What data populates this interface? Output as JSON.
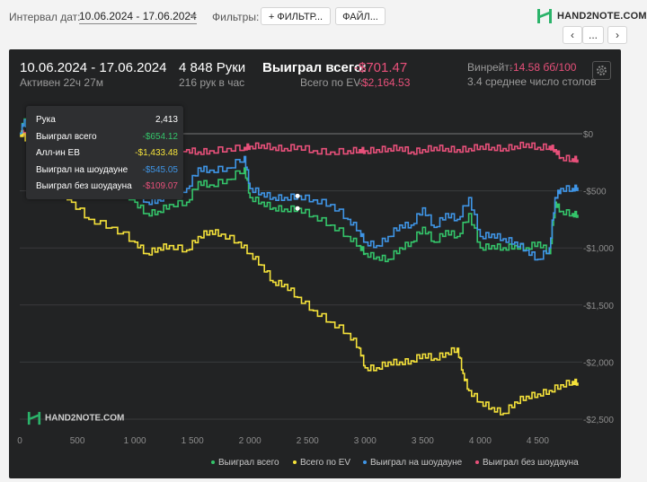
{
  "toolbar": {
    "interval_label": "Интервал дат:",
    "date_range": "10.06.2024 - 17.06.2024",
    "filters_label": "Фильтры:",
    "filter_button": "+ ФИЛЬТР...",
    "file_button": "ФАЙЛ...",
    "nav_prev": "‹",
    "nav_more": "...",
    "nav_next": "›"
  },
  "brand": {
    "logo_text": "HAND2NOTE.COM",
    "watermark": "HAND2NOTE.COM"
  },
  "summary": {
    "period": "10.06.2024 - 17.06.2024",
    "active": "Активен 22ч 27м",
    "hands": "4 848 Руки",
    "hands_per_hour": "216 рук в час",
    "won_total_label": "Выиграл всего:",
    "won_total_value": "-$701.47",
    "ev_label": "Всего по EV:",
    "ev_value": "-$2,164.53",
    "winrate_label": "Винрейт:",
    "winrate_value": "-14.58 бб/100",
    "tables": "3.4 среднее число столов"
  },
  "tooltip": {
    "rows": [
      {
        "label": "Рука",
        "value": "2,413",
        "color": "#ffffff"
      },
      {
        "label": "Выиграл всего",
        "value": "-$654.12",
        "color": "#34c46a"
      },
      {
        "label": "Алл-ин EB",
        "value": "-$1,433.48",
        "color": "#f5e23a"
      },
      {
        "label": "Выиграл на шоудауне",
        "value": "-$545.05",
        "color": "#3f95e6"
      },
      {
        "label": "Выиграл без шоудауна",
        "value": "-$109.07",
        "color": "#e8507a"
      }
    ]
  },
  "chart_data": {
    "type": "line",
    "xlabel": "",
    "ylabel": "",
    "xlim": [
      0,
      4848
    ],
    "ylim": [
      -2500,
      0
    ],
    "x_ticks": [
      0,
      500,
      1000,
      1500,
      2000,
      2500,
      3000,
      3500,
      4000,
      4500
    ],
    "x_tick_labels": [
      "0",
      "500",
      "1 000",
      "1 500",
      "2 000",
      "2 500",
      "3 000",
      "3 500",
      "4 000",
      "4 500"
    ],
    "y_ticks": [
      0,
      -500,
      -1000,
      -1500,
      -2000,
      -2500
    ],
    "y_tick_labels": [
      "$0",
      "-$500",
      "-$1,000",
      "-$1,500",
      "-$2,000",
      "-$2,500"
    ],
    "legend_position": "bottom-right",
    "grid": true,
    "series": [
      {
        "name": "Выиграл всего",
        "color": "#34c46a",
        "x": [
          0,
          40,
          100,
          200,
          300,
          450,
          600,
          800,
          1000,
          1100,
          1200,
          1300,
          1450,
          1550,
          1650,
          1800,
          1950,
          2000,
          2100,
          2200,
          2300,
          2413,
          2550,
          2700,
          2850,
          2950,
          3000,
          3100,
          3200,
          3300,
          3400,
          3500,
          3600,
          3700,
          3800,
          3900,
          4000,
          4100,
          4200,
          4300,
          4400,
          4500,
          4600,
          4650,
          4700,
          4800,
          4848
        ],
        "y": [
          0,
          130,
          -50,
          -120,
          -150,
          -200,
          -280,
          -420,
          -600,
          -700,
          -680,
          -620,
          -600,
          -420,
          -450,
          -400,
          -300,
          -560,
          -600,
          -650,
          -660,
          -654,
          -720,
          -800,
          -900,
          -980,
          -1050,
          -1080,
          -1100,
          -1000,
          -950,
          -820,
          -950,
          -850,
          -900,
          -700,
          -1000,
          -980,
          -1000,
          -980,
          -1000,
          -950,
          -1050,
          -600,
          -680,
          -700,
          -710
        ]
      },
      {
        "name": "Всего по EV",
        "color": "#f5e23a",
        "x": [
          0,
          30,
          100,
          200,
          300,
          450,
          600,
          800,
          1000,
          1100,
          1200,
          1300,
          1450,
          1550,
          1650,
          1750,
          1900,
          2000,
          2100,
          2200,
          2300,
          2413,
          2550,
          2700,
          2850,
          2950,
          3000,
          3100,
          3200,
          3300,
          3400,
          3500,
          3600,
          3700,
          3800,
          3850,
          3900,
          4000,
          4100,
          4200,
          4300,
          4400,
          4500,
          4600,
          4700,
          4800,
          4848
        ],
        "y": [
          0,
          0,
          -150,
          -300,
          -420,
          -600,
          -750,
          -820,
          -950,
          -1050,
          -1000,
          -980,
          -1020,
          -900,
          -850,
          -880,
          -950,
          -1050,
          -1150,
          -1300,
          -1320,
          -1433,
          -1550,
          -1650,
          -1750,
          -1880,
          -2050,
          -2050,
          -2000,
          -2000,
          -1990,
          -1930,
          -1970,
          -1920,
          -1880,
          -2100,
          -2250,
          -2350,
          -2400,
          -2450,
          -2350,
          -2300,
          -2280,
          -2250,
          -2200,
          -2170,
          -2180
        ]
      },
      {
        "name": "Выиграл на шоудауне",
        "color": "#3f95e6",
        "x": [
          0,
          40,
          100,
          200,
          300,
          450,
          600,
          800,
          1000,
          1100,
          1200,
          1300,
          1450,
          1550,
          1650,
          1800,
          1950,
          2000,
          2100,
          2200,
          2300,
          2413,
          2550,
          2700,
          2850,
          2950,
          3000,
          3100,
          3200,
          3300,
          3400,
          3500,
          3600,
          3700,
          3800,
          3900,
          4000,
          4100,
          4200,
          4300,
          4400,
          4500,
          4600,
          4650,
          4700,
          4800,
          4848
        ],
        "y": [
          0,
          120,
          -20,
          -90,
          -110,
          -120,
          -200,
          -360,
          -500,
          -600,
          -580,
          -520,
          -480,
          -300,
          -320,
          -300,
          -200,
          -480,
          -520,
          -560,
          -560,
          -545,
          -580,
          -620,
          -750,
          -850,
          -950,
          -980,
          -900,
          -800,
          -800,
          -650,
          -820,
          -700,
          -750,
          -560,
          -900,
          -880,
          -920,
          -950,
          -1020,
          -1100,
          -1000,
          -560,
          -480,
          -480,
          -470
        ]
      },
      {
        "name": "Выиграл без шоудауна",
        "color": "#e8507a",
        "x": [
          0,
          40,
          100,
          200,
          300,
          450,
          600,
          800,
          1000,
          1100,
          1200,
          1300,
          1450,
          1550,
          1650,
          1800,
          1950,
          2000,
          2100,
          2200,
          2300,
          2413,
          2550,
          2700,
          2850,
          2950,
          3000,
          3100,
          3200,
          3300,
          3400,
          3500,
          3600,
          3700,
          3800,
          3900,
          4000,
          4100,
          4200,
          4300,
          4400,
          4500,
          4600,
          4650,
          4700,
          4800,
          4848
        ],
        "y": [
          0,
          10,
          -30,
          -40,
          -60,
          -90,
          -100,
          -80,
          -100,
          -100,
          -120,
          -110,
          -140,
          -160,
          -150,
          -130,
          -120,
          -110,
          -100,
          -120,
          -130,
          -109,
          -150,
          -160,
          -150,
          -140,
          -150,
          -140,
          -130,
          -120,
          -160,
          -140,
          -120,
          -130,
          -140,
          -130,
          -110,
          -120,
          -130,
          -110,
          -90,
          -120,
          -110,
          -140,
          -210,
          -220,
          -225
        ]
      }
    ]
  }
}
